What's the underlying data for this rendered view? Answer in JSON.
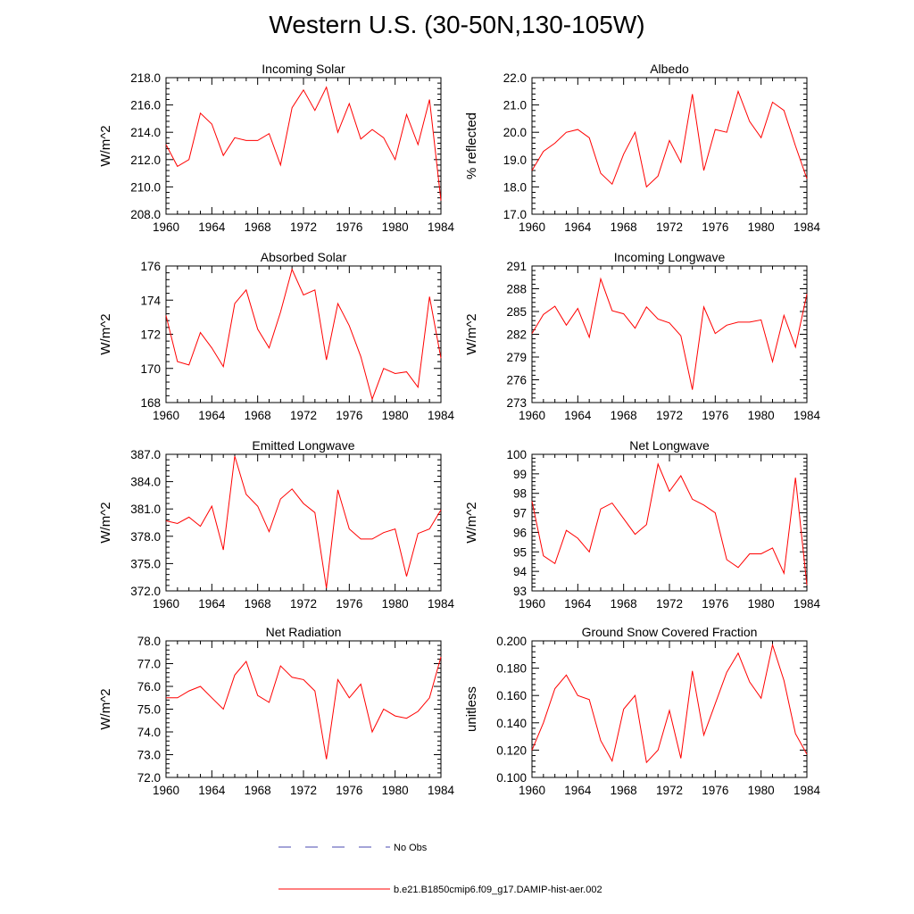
{
  "title": "Western U.S. (30-50N,130-105W)",
  "colors": {
    "model": "#ff0000",
    "obs": "#4a4ab0",
    "axis": "#000000"
  },
  "legend": [
    {
      "label": "No Obs",
      "style": "dashed",
      "color": "#4a4ab0"
    },
    {
      "label": "b.e21.B1850cmip6.f09_g17.DAMIP-hist-aer.002",
      "style": "solid",
      "color": "#ff0000"
    }
  ],
  "chart_data": [
    {
      "type": "line",
      "title": "Incoming Solar",
      "ylabel": "W/m^2",
      "xlim": [
        1960,
        1984
      ],
      "xticks": [
        1960,
        1964,
        1968,
        1972,
        1976,
        1980,
        1984
      ],
      "ylim": [
        208,
        218
      ],
      "yticks": [
        "208.0",
        "210.0",
        "212.0",
        "214.0",
        "216.0",
        "218.0"
      ],
      "series": [
        {
          "name": "b.e21.B1850cmip6.f09_g17.DAMIP-hist-aer.002",
          "x": [
            1960,
            1961,
            1962,
            1963,
            1964,
            1965,
            1966,
            1967,
            1968,
            1969,
            1970,
            1971,
            1972,
            1973,
            1974,
            1975,
            1976,
            1977,
            1978,
            1979,
            1980,
            1981,
            1982,
            1983,
            1984
          ],
          "y": [
            213.1,
            211.5,
            212.0,
            215.4,
            214.6,
            212.3,
            213.6,
            213.4,
            213.4,
            213.9,
            211.6,
            215.8,
            217.1,
            215.6,
            217.3,
            214.0,
            216.1,
            213.5,
            214.2,
            213.6,
            212.0,
            215.3,
            213.1,
            216.4,
            209.0
          ]
        }
      ]
    },
    {
      "type": "line",
      "title": "Albedo",
      "ylabel": "% reflected",
      "xlim": [
        1960,
        1984
      ],
      "xticks": [
        1960,
        1964,
        1968,
        1972,
        1976,
        1980,
        1984
      ],
      "ylim": [
        17,
        22
      ],
      "yticks": [
        "17.0",
        "18.0",
        "19.0",
        "20.0",
        "21.0",
        "22.0"
      ],
      "series": [
        {
          "name": "b.e21.B1850cmip6.f09_g17.DAMIP-hist-aer.002",
          "x": [
            1960,
            1961,
            1962,
            1963,
            1964,
            1965,
            1966,
            1967,
            1968,
            1969,
            1970,
            1971,
            1972,
            1973,
            1974,
            1975,
            1976,
            1977,
            1978,
            1979,
            1980,
            1981,
            1982,
            1983,
            1984
          ],
          "y": [
            18.6,
            19.3,
            19.6,
            20.0,
            20.1,
            19.8,
            18.5,
            18.1,
            19.2,
            20.0,
            18.0,
            18.4,
            19.7,
            18.9,
            21.4,
            18.6,
            20.1,
            20.0,
            21.5,
            20.4,
            19.8,
            21.1,
            20.8,
            19.5,
            18.3
          ]
        }
      ]
    },
    {
      "type": "line",
      "title": "Absorbed Solar",
      "ylabel": "W/m^2",
      "xlim": [
        1960,
        1984
      ],
      "xticks": [
        1960,
        1964,
        1968,
        1972,
        1976,
        1980,
        1984
      ],
      "ylim": [
        168,
        176
      ],
      "yticks": [
        "168",
        "170",
        "172",
        "174",
        "176"
      ],
      "series": [
        {
          "name": "b.e21.B1850cmip6.f09_g17.DAMIP-hist-aer.002",
          "x": [
            1960,
            1961,
            1962,
            1963,
            1964,
            1965,
            1966,
            1967,
            1968,
            1969,
            1970,
            1971,
            1972,
            1973,
            1974,
            1975,
            1976,
            1977,
            1978,
            1979,
            1980,
            1981,
            1982,
            1983,
            1984
          ],
          "y": [
            173.1,
            170.4,
            170.2,
            172.1,
            171.2,
            170.1,
            173.8,
            174.6,
            172.3,
            171.2,
            173.3,
            175.8,
            174.3,
            174.6,
            170.5,
            173.8,
            172.5,
            170.7,
            168.2,
            170.0,
            169.7,
            169.8,
            168.9,
            174.2,
            170.6
          ]
        }
      ]
    },
    {
      "type": "line",
      "title": "Incoming Longwave",
      "ylabel": "W/m^2",
      "xlim": [
        1960,
        1984
      ],
      "xticks": [
        1960,
        1964,
        1968,
        1972,
        1976,
        1980,
        1984
      ],
      "ylim": [
        273,
        291
      ],
      "yticks": [
        "273",
        "276",
        "279",
        "282",
        "285",
        "288",
        "291"
      ],
      "series": [
        {
          "name": "b.e21.B1850cmip6.f09_g17.DAMIP-hist-aer.002",
          "x": [
            1960,
            1961,
            1962,
            1963,
            1964,
            1965,
            1966,
            1967,
            1968,
            1969,
            1970,
            1971,
            1972,
            1973,
            1974,
            1975,
            1976,
            1977,
            1978,
            1979,
            1980,
            1981,
            1982,
            1983,
            1984
          ],
          "y": [
            282.1,
            284.6,
            285.7,
            283.2,
            285.4,
            281.6,
            289.3,
            285.1,
            284.7,
            282.8,
            285.6,
            284.0,
            283.5,
            281.8,
            274.7,
            285.6,
            282.1,
            283.2,
            283.6,
            283.6,
            283.9,
            278.4,
            284.5,
            280.3,
            287.3
          ]
        }
      ]
    },
    {
      "type": "line",
      "title": "Emitted Longwave",
      "ylabel": "W/m^2",
      "xlim": [
        1960,
        1984
      ],
      "xticks": [
        1960,
        1964,
        1968,
        1972,
        1976,
        1980,
        1984
      ],
      "ylim": [
        372,
        387
      ],
      "yticks": [
        "372.0",
        "375.0",
        "378.0",
        "381.0",
        "384.0",
        "387.0"
      ],
      "series": [
        {
          "name": "b.e21.B1850cmip6.f09_g17.DAMIP-hist-aer.002",
          "x": [
            1960,
            1961,
            1962,
            1963,
            1964,
            1965,
            1966,
            1967,
            1968,
            1969,
            1970,
            1971,
            1972,
            1973,
            1974,
            1975,
            1976,
            1977,
            1978,
            1979,
            1980,
            1981,
            1982,
            1983,
            1984
          ],
          "y": [
            379.7,
            379.4,
            380.1,
            379.1,
            381.3,
            376.5,
            386.8,
            382.6,
            381.3,
            378.5,
            382.1,
            383.2,
            381.6,
            380.6,
            372.3,
            383.1,
            378.8,
            377.7,
            377.7,
            378.4,
            378.8,
            373.6,
            378.3,
            378.8,
            380.9
          ]
        }
      ]
    },
    {
      "type": "line",
      "title": "Net Longwave",
      "ylabel": "W/m^2",
      "xlim": [
        1960,
        1984
      ],
      "xticks": [
        1960,
        1964,
        1968,
        1972,
        1976,
        1980,
        1984
      ],
      "ylim": [
        93,
        100
      ],
      "yticks": [
        "93",
        "94",
        "95",
        "96",
        "97",
        "98",
        "99",
        "100"
      ],
      "series": [
        {
          "name": "b.e21.B1850cmip6.f09_g17.DAMIP-hist-aer.002",
          "x": [
            1960,
            1961,
            1962,
            1963,
            1964,
            1965,
            1966,
            1967,
            1968,
            1969,
            1970,
            1971,
            1972,
            1973,
            1974,
            1975,
            1976,
            1977,
            1978,
            1979,
            1980,
            1981,
            1982,
            1983,
            1984
          ],
          "y": [
            97.6,
            94.8,
            94.4,
            96.1,
            95.7,
            95.0,
            97.2,
            97.5,
            96.7,
            95.9,
            96.4,
            99.5,
            98.1,
            98.9,
            97.7,
            97.4,
            97.0,
            94.6,
            94.2,
            94.9,
            94.9,
            95.2,
            93.9,
            98.8,
            93.3
          ]
        }
      ]
    },
    {
      "type": "line",
      "title": "Net Radiation",
      "ylabel": "W/m^2",
      "xlim": [
        1960,
        1984
      ],
      "xticks": [
        1960,
        1964,
        1968,
        1972,
        1976,
        1980,
        1984
      ],
      "ylim": [
        72,
        78
      ],
      "yticks": [
        "72.0",
        "73.0",
        "74.0",
        "75.0",
        "76.0",
        "77.0",
        "78.0"
      ],
      "series": [
        {
          "name": "b.e21.B1850cmip6.f09_g17.DAMIP-hist-aer.002",
          "x": [
            1960,
            1961,
            1962,
            1963,
            1964,
            1965,
            1966,
            1967,
            1968,
            1969,
            1970,
            1971,
            1972,
            1973,
            1974,
            1975,
            1976,
            1977,
            1978,
            1979,
            1980,
            1981,
            1982,
            1983,
            1984
          ],
          "y": [
            75.5,
            75.5,
            75.8,
            76.0,
            75.5,
            75.0,
            76.5,
            77.1,
            75.6,
            75.3,
            76.9,
            76.4,
            76.3,
            75.8,
            72.8,
            76.3,
            75.5,
            76.1,
            74.0,
            75.0,
            74.7,
            74.6,
            74.9,
            75.5,
            77.3
          ]
        }
      ]
    },
    {
      "type": "line",
      "title": "Ground Snow Covered Fraction",
      "ylabel": "unitless",
      "xlim": [
        1960,
        1984
      ],
      "xticks": [
        1960,
        1964,
        1968,
        1972,
        1976,
        1980,
        1984
      ],
      "ylim": [
        0.1,
        0.2
      ],
      "yticks": [
        "0.100",
        "0.120",
        "0.140",
        "0.160",
        "0.180",
        "0.200"
      ],
      "series": [
        {
          "name": "b.e21.B1850cmip6.f09_g17.DAMIP-hist-aer.002",
          "x": [
            1960,
            1961,
            1962,
            1963,
            1964,
            1965,
            1966,
            1967,
            1968,
            1969,
            1970,
            1971,
            1972,
            1973,
            1974,
            1975,
            1976,
            1977,
            1978,
            1979,
            1980,
            1981,
            1982,
            1983,
            1984
          ],
          "y": [
            0.12,
            0.14,
            0.165,
            0.175,
            0.16,
            0.157,
            0.127,
            0.112,
            0.15,
            0.16,
            0.111,
            0.12,
            0.149,
            0.114,
            0.178,
            0.131,
            0.154,
            0.177,
            0.191,
            0.17,
            0.158,
            0.197,
            0.171,
            0.132,
            0.117
          ]
        }
      ]
    }
  ]
}
